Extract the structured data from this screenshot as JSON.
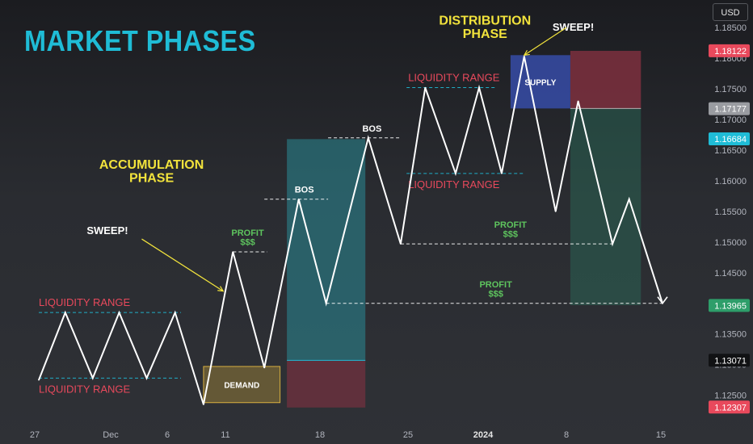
{
  "title": "MARKET PHASES",
  "currency": "USD",
  "colors": {
    "background": "#25272b",
    "accent": "#1fbcd6",
    "yellow": "#f2e33c",
    "red": "#e8495c",
    "green": "#5ec45e",
    "price_line": "#ffffff",
    "teal_zone": "#2a8a96",
    "dark_green_zone": "#2b5e55",
    "blue_zone": "#3a52b8",
    "red_zone": "#8a3242",
    "demand_zone": "#c8a33a"
  },
  "chart_data": {
    "type": "line",
    "title": "MARKET PHASES",
    "ylim": [
      1.121,
      1.1895
    ],
    "y_ticks": [
      "1.12500",
      "1.13000",
      "1.13500",
      "1.14000",
      "1.14500",
      "1.15000",
      "1.15500",
      "1.16000",
      "1.16500",
      "1.17000",
      "1.17500",
      "1.18000",
      "1.18500"
    ],
    "x_ticks": [
      "27",
      "Dec",
      "6",
      "11",
      "18",
      "25",
      "2024",
      "8",
      "15"
    ],
    "x_ticks_bold": [
      "2024"
    ],
    "price_labels": [
      {
        "text": "1.18122",
        "value": 1.18122,
        "color": "#e8495c"
      },
      {
        "text": "1.17177",
        "value": 1.17177,
        "color": "#9a9ca1"
      },
      {
        "text": "1.16684",
        "value": 1.16684,
        "color": "#1fbcd6"
      },
      {
        "text": "1.13965",
        "value": 1.13965,
        "color": "#2e9e6a"
      },
      {
        "text": "1.13071",
        "value": 1.13071,
        "color": "#111214"
      },
      {
        "text": "1.12307",
        "value": 1.12307,
        "color": "#e8495c"
      }
    ],
    "series": [
      {
        "values": [
          {
            "x": 0,
            "y": 1.1275
          },
          {
            "x": 2.7,
            "y": 1.1385
          },
          {
            "x": 5.5,
            "y": 1.1278
          },
          {
            "x": 8.2,
            "y": 1.1385
          },
          {
            "x": 11,
            "y": 1.1278
          },
          {
            "x": 13.9,
            "y": 1.1385
          },
          {
            "x": 16.8,
            "y": 1.1235
          },
          {
            "x": 19.8,
            "y": 1.1484
          },
          {
            "x": 23,
            "y": 1.1295
          },
          {
            "x": 26.5,
            "y": 1.157
          },
          {
            "x": 29.3,
            "y": 1.14
          },
          {
            "x": 33.6,
            "y": 1.167
          },
          {
            "x": 36.9,
            "y": 1.1497
          },
          {
            "x": 39.4,
            "y": 1.1752
          },
          {
            "x": 42.5,
            "y": 1.1612
          },
          {
            "x": 44.9,
            "y": 1.1752
          },
          {
            "x": 47.2,
            "y": 1.1612
          },
          {
            "x": 49.5,
            "y": 1.1803
          },
          {
            "x": 52.7,
            "y": 1.155
          },
          {
            "x": 55,
            "y": 1.173
          },
          {
            "x": 58.5,
            "y": 1.1497
          },
          {
            "x": 60.2,
            "y": 1.157
          },
          {
            "x": 63.6,
            "y": 1.14
          }
        ]
      }
    ],
    "zones": [
      {
        "label": "DEMAND",
        "type": "demand",
        "x0": 16.8,
        "x1": 24.6,
        "y0": 1.1238,
        "y1": 1.1297
      },
      {
        "label": "",
        "type": "long-profit",
        "x0": 25.3,
        "x1": 33.3,
        "y0": 1.1307,
        "y1": 1.1668
      },
      {
        "label": "",
        "type": "long-stop",
        "x0": 25.3,
        "x1": 33.3,
        "y0": 1.123,
        "y1": 1.1307
      },
      {
        "label": "SUPPLY",
        "type": "supply",
        "x0": 48.1,
        "x1": 54.2,
        "y0": 1.1718,
        "y1": 1.1805
      },
      {
        "label": "",
        "type": "short-stop",
        "x0": 54.2,
        "x1": 61.4,
        "y0": 1.1718,
        "y1": 1.1812
      },
      {
        "label": "",
        "type": "short-profit",
        "x0": 54.2,
        "x1": 61.4,
        "y0": 1.1397,
        "y1": 1.1718
      }
    ],
    "levels": [
      {
        "label": "LIQUIDITY RANGE",
        "y": 1.1385,
        "x0": 0,
        "x1": 14.5,
        "color": "#e8495c",
        "line_color": "#1fbcd6"
      },
      {
        "label": "LIQUIDITY RANGE",
        "y": 1.1278,
        "x0": 0,
        "x1": 14.5,
        "color": "#e8495c",
        "line_color": "#1fbcd6"
      },
      {
        "label": "LIQUIDITY RANGE",
        "y": 1.1752,
        "x0": 37.5,
        "x1": 46.5,
        "color": "#e8495c",
        "line_color": "#1fbcd6"
      },
      {
        "label": "LIQUIDITY RANGE",
        "y": 1.1612,
        "x0": 37.5,
        "x1": 49.5,
        "color": "#e8495c",
        "line_color": "#1fbcd6"
      },
      {
        "label": "BOS",
        "y": 1.157,
        "x0": 23,
        "x1": 29.5,
        "color": "#ffffff",
        "line_color": "#ffffff"
      },
      {
        "label": "BOS",
        "y": 1.167,
        "x0": 29.5,
        "x1": 36.8,
        "color": "#ffffff",
        "line_color": "#ffffff"
      },
      {
        "label": "PROFIT\n$$$",
        "y": 1.1484,
        "x0": 19.8,
        "x1": 23.3,
        "color": "#5ec45e",
        "line_color": "#ffffff"
      },
      {
        "label": "PROFIT\n$$$",
        "y": 1.1497,
        "x0": 36.9,
        "x1": 58.5,
        "color": "#5ec45e",
        "line_color": "#ffffff"
      },
      {
        "label": "PROFIT\n$$$",
        "y": 1.14,
        "x0": 29.3,
        "x1": 63.6,
        "color": "#5ec45e",
        "line_color": "#ffffff"
      }
    ],
    "annotations": [
      {
        "text": "ACCUMULATION\nPHASE",
        "x": 11.5,
        "y": 1.162,
        "color": "#f2e33c"
      },
      {
        "text": "DISTRIBUTION\nPHASE",
        "x": 45.5,
        "y": 1.1855,
        "color": "#f2e33c"
      },
      {
        "text": "SWEEP!",
        "x": 7,
        "y": 1.1513,
        "color": "#ffffff"
      },
      {
        "text": "SWEEP!",
        "x": 54.5,
        "y": 1.1845,
        "color": "#ffffff"
      }
    ],
    "arrows": [
      {
        "from": {
          "x": 10.5,
          "y": 1.1505
        },
        "to": {
          "x": 18.8,
          "y": 1.142
        }
      },
      {
        "from": {
          "x": 53.8,
          "y": 1.185
        },
        "to": {
          "x": 49.5,
          "y": 1.1805
        }
      }
    ],
    "grid": false,
    "legend": "none"
  }
}
